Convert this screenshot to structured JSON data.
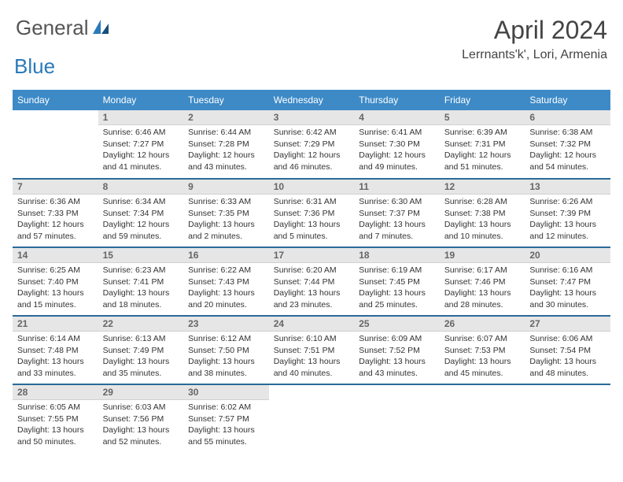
{
  "brand": {
    "general": "General",
    "blue": "Blue"
  },
  "title": {
    "month": "April 2024",
    "location": "Lerrnants'k', Lori, Armenia"
  },
  "colors": {
    "headerBar": "#3d8ac7",
    "dayBar": "#e6e6e6",
    "sepLine": "#2a6a9a",
    "logoAccent": "#2a7ab9"
  },
  "weekdays": [
    "Sunday",
    "Monday",
    "Tuesday",
    "Wednesday",
    "Thursday",
    "Friday",
    "Saturday"
  ],
  "weeks": [
    [
      null,
      {
        "n": "1",
        "sr": "6:46 AM",
        "ss": "7:27 PM",
        "dl": "12 hours and 41 minutes."
      },
      {
        "n": "2",
        "sr": "6:44 AM",
        "ss": "7:28 PM",
        "dl": "12 hours and 43 minutes."
      },
      {
        "n": "3",
        "sr": "6:42 AM",
        "ss": "7:29 PM",
        "dl": "12 hours and 46 minutes."
      },
      {
        "n": "4",
        "sr": "6:41 AM",
        "ss": "7:30 PM",
        "dl": "12 hours and 49 minutes."
      },
      {
        "n": "5",
        "sr": "6:39 AM",
        "ss": "7:31 PM",
        "dl": "12 hours and 51 minutes."
      },
      {
        "n": "6",
        "sr": "6:38 AM",
        "ss": "7:32 PM",
        "dl": "12 hours and 54 minutes."
      }
    ],
    [
      {
        "n": "7",
        "sr": "6:36 AM",
        "ss": "7:33 PM",
        "dl": "12 hours and 57 minutes."
      },
      {
        "n": "8",
        "sr": "6:34 AM",
        "ss": "7:34 PM",
        "dl": "12 hours and 59 minutes."
      },
      {
        "n": "9",
        "sr": "6:33 AM",
        "ss": "7:35 PM",
        "dl": "13 hours and 2 minutes."
      },
      {
        "n": "10",
        "sr": "6:31 AM",
        "ss": "7:36 PM",
        "dl": "13 hours and 5 minutes."
      },
      {
        "n": "11",
        "sr": "6:30 AM",
        "ss": "7:37 PM",
        "dl": "13 hours and 7 minutes."
      },
      {
        "n": "12",
        "sr": "6:28 AM",
        "ss": "7:38 PM",
        "dl": "13 hours and 10 minutes."
      },
      {
        "n": "13",
        "sr": "6:26 AM",
        "ss": "7:39 PM",
        "dl": "13 hours and 12 minutes."
      }
    ],
    [
      {
        "n": "14",
        "sr": "6:25 AM",
        "ss": "7:40 PM",
        "dl": "13 hours and 15 minutes."
      },
      {
        "n": "15",
        "sr": "6:23 AM",
        "ss": "7:41 PM",
        "dl": "13 hours and 18 minutes."
      },
      {
        "n": "16",
        "sr": "6:22 AM",
        "ss": "7:43 PM",
        "dl": "13 hours and 20 minutes."
      },
      {
        "n": "17",
        "sr": "6:20 AM",
        "ss": "7:44 PM",
        "dl": "13 hours and 23 minutes."
      },
      {
        "n": "18",
        "sr": "6:19 AM",
        "ss": "7:45 PM",
        "dl": "13 hours and 25 minutes."
      },
      {
        "n": "19",
        "sr": "6:17 AM",
        "ss": "7:46 PM",
        "dl": "13 hours and 28 minutes."
      },
      {
        "n": "20",
        "sr": "6:16 AM",
        "ss": "7:47 PM",
        "dl": "13 hours and 30 minutes."
      }
    ],
    [
      {
        "n": "21",
        "sr": "6:14 AM",
        "ss": "7:48 PM",
        "dl": "13 hours and 33 minutes."
      },
      {
        "n": "22",
        "sr": "6:13 AM",
        "ss": "7:49 PM",
        "dl": "13 hours and 35 minutes."
      },
      {
        "n": "23",
        "sr": "6:12 AM",
        "ss": "7:50 PM",
        "dl": "13 hours and 38 minutes."
      },
      {
        "n": "24",
        "sr": "6:10 AM",
        "ss": "7:51 PM",
        "dl": "13 hours and 40 minutes."
      },
      {
        "n": "25",
        "sr": "6:09 AM",
        "ss": "7:52 PM",
        "dl": "13 hours and 43 minutes."
      },
      {
        "n": "26",
        "sr": "6:07 AM",
        "ss": "7:53 PM",
        "dl": "13 hours and 45 minutes."
      },
      {
        "n": "27",
        "sr": "6:06 AM",
        "ss": "7:54 PM",
        "dl": "13 hours and 48 minutes."
      }
    ],
    [
      {
        "n": "28",
        "sr": "6:05 AM",
        "ss": "7:55 PM",
        "dl": "13 hours and 50 minutes."
      },
      {
        "n": "29",
        "sr": "6:03 AM",
        "ss": "7:56 PM",
        "dl": "13 hours and 52 minutes."
      },
      {
        "n": "30",
        "sr": "6:02 AM",
        "ss": "7:57 PM",
        "dl": "13 hours and 55 minutes."
      },
      null,
      null,
      null,
      null
    ]
  ],
  "labels": {
    "sunrise": "Sunrise:",
    "sunset": "Sunset:",
    "daylight": "Daylight:"
  }
}
